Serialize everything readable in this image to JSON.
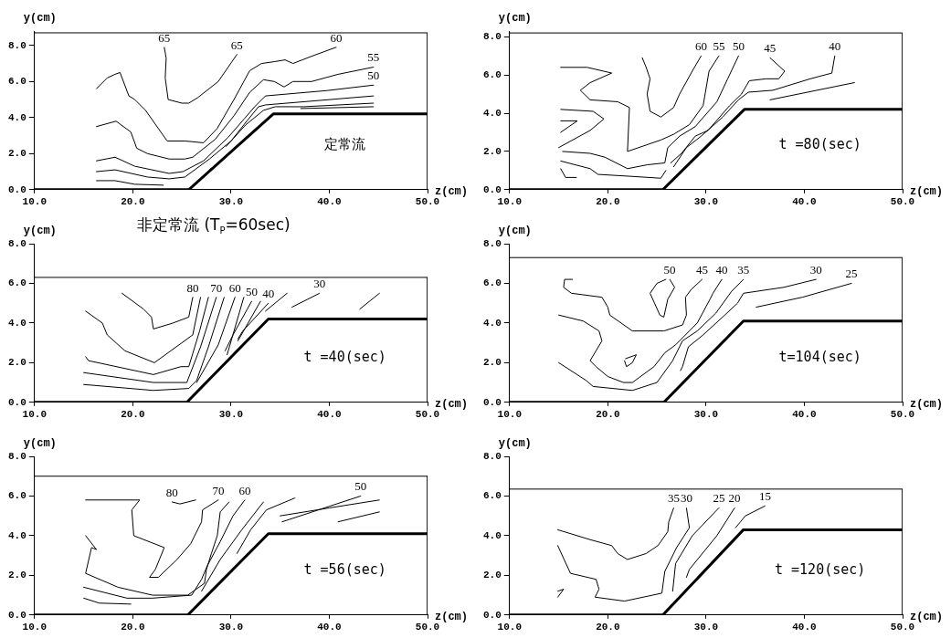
{
  "chart_data": [
    {
      "type": "line",
      "xlabel": "z(cm)",
      "ylabel": "y(cm)",
      "annotations": [
        "定常流",
        {
          "text": "65",
          "x": 23.2,
          "y": 7.9
        },
        {
          "text": "65",
          "x": 30.6,
          "y": 7.5
        }
      ],
      "xlim": [
        10,
        50
      ],
      "ylim": [
        0,
        8.8
      ],
      "marker": "none",
      "legend": false,
      "xticks": [
        {
          "value": 10,
          "label": "10.0"
        },
        {
          "value": 20,
          "label": "20.0"
        },
        {
          "value": 30,
          "label": "30.0"
        },
        {
          "value": 40,
          "label": "40.0"
        },
        {
          "value": 50,
          "label": "50.0"
        }
      ],
      "yticks": [
        {
          "value": 0,
          "label": "0.0"
        },
        {
          "value": 2,
          "label": "2.0"
        },
        {
          "value": 4,
          "label": "4.0"
        },
        {
          "value": 6,
          "label": "6.0"
        },
        {
          "value": 8,
          "label": "8.0"
        }
      ],
      "series": [
        {
          "color": "#000000",
          "x": [
            10,
            25.7,
            34.3,
            50
          ],
          "values": [
            0,
            0,
            4.2,
            4.2
          ]
        },
        {
          "color": "#000000",
          "x": [
            10,
            50,
            50
          ],
          "values": [
            8.7,
            8.7,
            0
          ]
        },
        {
          "color": "#000000",
          "x": [
            23.2,
            23.4,
            23.3,
            23.6,
            25.0,
            25.7,
            26.6,
            28.7,
            30.6
          ],
          "values": [
            7.9,
            7.3,
            6.2,
            5.0,
            4.8,
            4.8,
            5.1,
            6.0,
            7.5
          ]
        },
        {
          "name": "60",
          "color": "#000000",
          "x": [
            40.7,
            38.2,
            36.3,
            35.5,
            34.4,
            33.1,
            31.9,
            30.3,
            28.6,
            27.2,
            25.3,
            23.5,
            21.3,
            20.2,
            19.6,
            18.7,
            18.2,
            17.4,
            16.3
          ],
          "values": [
            7.9,
            7.4,
            7.0,
            7.2,
            7.1,
            7.0,
            6.6,
            5.0,
            3.4,
            2.6,
            2.7,
            2.7,
            4.4,
            5.0,
            5.2,
            6.5,
            6.4,
            6.2,
            5.6
          ]
        },
        {
          "name": "55",
          "color": "#000000",
          "x": [
            44.5,
            40.9,
            38.2,
            36.3,
            35.4,
            34.4,
            33.3,
            31.9,
            30.3,
            28.4,
            26.1,
            25.3,
            23.7,
            21.5,
            20.4,
            19.8,
            18.3,
            16.3
          ],
          "values": [
            6.8,
            6.4,
            6.0,
            6.0,
            5.7,
            6.0,
            6.1,
            5.4,
            4.1,
            2.8,
            1.8,
            1.7,
            1.7,
            2.0,
            2.3,
            3.2,
            3.8,
            3.5
          ]
        },
        {
          "name": "50",
          "color": "#000000",
          "x": [
            44.5,
            39.8,
            33.5,
            32.4,
            31.3,
            29.7,
            27.2,
            25.1,
            23.7,
            20.2,
            18.2,
            16.3
          ],
          "values": [
            5.8,
            5.5,
            5.2,
            4.6,
            3.9,
            2.9,
            1.6,
            1.0,
            0.9,
            1.3,
            1.8,
            1.6
          ]
        },
        {
          "color": "#000000",
          "x": [
            44.5,
            33.5,
            32.8,
            31.6,
            30.0,
            27.8,
            25.3,
            23.7,
            21.5,
            18.2,
            16.3
          ],
          "values": [
            5.2,
            4.7,
            4.6,
            3.8,
            2.7,
            1.7,
            0.7,
            0.6,
            0.7,
            1.1,
            1.0
          ]
        },
        {
          "color": "#000000",
          "x": [
            44.5,
            37.4,
            34.5,
            33.3,
            31.5,
            29.5
          ],
          "values": [
            4.8,
            4.6,
            4.6,
            4.4,
            3.6,
            2.4
          ]
        },
        {
          "color": "#000000",
          "x": [
            44.5,
            37.1
          ],
          "values": [
            4.6,
            4.5
          ]
        },
        {
          "color": "#000000",
          "x": [
            16.3,
            18.2,
            20.2,
            23.1
          ],
          "values": [
            0.5,
            0.5,
            0.3,
            0.25
          ]
        },
        {
          "color": "#000000",
          "x": [
            27.2,
            28.0
          ],
          "values": [
            0.7,
            1.2
          ]
        }
      ]
    },
    {
      "type": "line",
      "xlabel": "z(cm)",
      "ylabel": "y(cm)",
      "annotations": [
        "t =80(sec)"
      ],
      "xlim": [
        10,
        50
      ],
      "ylim": [
        0,
        8.3
      ],
      "marker": "none",
      "legend": false,
      "xticks": [
        {
          "value": 10,
          "label": "10.0"
        },
        {
          "value": 20,
          "label": "20.0"
        },
        {
          "value": 30,
          "label": "30.0"
        },
        {
          "value": 40,
          "label": "40.0"
        },
        {
          "value": 50,
          "label": "50.0"
        }
      ],
      "yticks": [
        {
          "value": 0,
          "label": "0.0"
        },
        {
          "value": 2,
          "label": "2.0"
        },
        {
          "value": 4,
          "label": "4.0"
        },
        {
          "value": 6,
          "label": "6.0"
        },
        {
          "value": 8,
          "label": "8.0"
        }
      ],
      "series": [
        {
          "color": "#000000",
          "x": [
            10,
            25.6,
            33.9,
            50
          ],
          "values": [
            0,
            0,
            4.2,
            4.2
          ]
        },
        {
          "color": "#000000",
          "x": [
            10,
            50,
            50
          ],
          "values": [
            8.2,
            8.2,
            0
          ]
        },
        {
          "name": "60",
          "color": "#000000",
          "x": [
            29.5,
            28.7,
            27.3,
            26.7,
            25.4,
            24.3,
            24.0,
            24.3,
            23.9,
            23.5
          ],
          "values": [
            7.0,
            6.3,
            5.0,
            4.3,
            3.8,
            4.1,
            5.0,
            5.8,
            6.4,
            6.9
          ]
        },
        {
          "name": "55",
          "color": "#000000",
          "x": [
            31.3,
            30.3,
            29.7,
            28.3,
            26.7,
            25.4,
            22.0,
            22.2,
            21.0,
            18.2,
            17.2,
            18.2,
            20.4,
            17.9,
            15.2
          ],
          "values": [
            7.0,
            6.2,
            4.4,
            3.4,
            2.9,
            2.6,
            2.0,
            4.3,
            4.6,
            4.7,
            5.2,
            5.6,
            6.1,
            6.4,
            6.4
          ]
        },
        {
          "name": "50",
          "color": "#000000",
          "x": [
            33.3,
            32.2,
            31.1,
            28.9,
            27.3,
            26.1,
            25.8,
            24.0,
            22.0,
            19.7,
            18.2,
            15.4
          ],
          "values": [
            7.0,
            5.8,
            4.6,
            3.3,
            2.8,
            2.2,
            1.4,
            1.3,
            1.1,
            1.7,
            1.9,
            2.0
          ]
        },
        {
          "name": "45",
          "color": "#000000",
          "x": [
            36.5,
            38.0,
            37.4,
            36.1,
            34.4,
            33.6,
            32.4,
            30.2,
            28.9,
            27.5,
            26.4
          ],
          "values": [
            6.9,
            6.2,
            5.8,
            5.8,
            5.7,
            5.0,
            4.4,
            3.1,
            2.8,
            1.9,
            1.4
          ]
        },
        {
          "name": "40",
          "color": "#000000",
          "x": [
            43.1,
            42.8,
            40.6,
            36.8,
            34.3,
            33.3,
            31.7,
            29.5,
            28.0,
            26.7
          ],
          "values": [
            7.0,
            6.1,
            5.8,
            5.2,
            5.1,
            4.7,
            3.8,
            2.8,
            2.2,
            1.2
          ]
        },
        {
          "color": "#000000",
          "x": [
            36.5,
            45.1
          ],
          "values": [
            4.7,
            5.6
          ]
        },
        {
          "color": "#000000",
          "x": [
            15.2,
            18.5,
            19.6,
            18.2,
            15.0
          ],
          "values": [
            4.2,
            4.1,
            3.7,
            3.1,
            2.2
          ]
        },
        {
          "color": "#000000",
          "x": [
            15.2,
            16.9,
            15.2
          ],
          "values": [
            3.6,
            3.6,
            3.0
          ]
        },
        {
          "color": "#000000",
          "x": [
            15.2,
            15.7,
            16.8
          ],
          "values": [
            1.1,
            0.64,
            0.64
          ]
        },
        {
          "color": "#000000",
          "x": [
            15.2,
            18.2,
            19.0,
            22.3,
            25.4,
            25.9
          ],
          "values": [
            1.5,
            1.1,
            0.8,
            0.7,
            0.6,
            1.0
          ]
        }
      ]
    },
    {
      "type": "line",
      "title": "非定常流 (T$_{P}$=60sec)",
      "xlabel": "z(cm)",
      "ylabel": "y(cm)",
      "annotations": [
        "t =40(sec)"
      ],
      "xlim": [
        10,
        50
      ],
      "ylim": [
        0,
        8
      ],
      "marker": "none",
      "legend": false,
      "xticks": [
        {
          "value": 10,
          "label": "10.0"
        },
        {
          "value": 20,
          "label": "20.0"
        },
        {
          "value": 30,
          "label": "30.0"
        },
        {
          "value": 40,
          "label": "40.0"
        },
        {
          "value": 50,
          "label": "50.0"
        }
      ],
      "yticks": [
        {
          "value": 0,
          "label": "0.0"
        },
        {
          "value": 2,
          "label": "2.0"
        },
        {
          "value": 4,
          "label": "4.0"
        },
        {
          "value": 6,
          "label": "6.0"
        },
        {
          "value": 8,
          "label": "8.0"
        }
      ],
      "series": [
        {
          "color": "#000000",
          "x": [
            10,
            25.5,
            33.8,
            50
          ],
          "values": [
            0,
            0,
            4.2,
            4.2
          ]
        },
        {
          "color": "#000000",
          "x": [
            10,
            50,
            50
          ],
          "values": [
            6.3,
            6.3,
            0
          ]
        },
        {
          "name": "80",
          "color": "#000000",
          "x": [
            26.1,
            25.7,
            24.1,
            22.1,
            21.9,
            21.1,
            18.9
          ],
          "values": [
            5.3,
            4.3,
            4.0,
            3.7,
            4.3,
            4.7,
            5.5
          ]
        },
        {
          "color": "#000000",
          "x": [
            26.9,
            26.1,
            22.2,
            19.2,
            17.4,
            16.9,
            15.2
          ],
          "values": [
            5.3,
            3.4,
            2.0,
            2.6,
            3.4,
            4.0,
            4.6
          ]
        },
        {
          "color": "#000000",
          "x": [
            27.7,
            26.8,
            25.7,
            24.9,
            22.1,
            15.5,
            15.2
          ],
          "values": [
            5.3,
            3.6,
            1.8,
            1.8,
            1.4,
            2.1,
            2.3
          ]
        },
        {
          "name": "70",
          "color": "#000000",
          "x": [
            28.5,
            26.9,
            25.5,
            22.1,
            15.0
          ],
          "values": [
            5.3,
            2.8,
            1.0,
            1.0,
            1.5
          ]
        },
        {
          "color": "#000000",
          "x": [
            29.3,
            27.7,
            26.5,
            25.7,
            22.1,
            15.0
          ],
          "values": [
            5.3,
            2.8,
            1.1,
            0.7,
            0.6,
            0.9
          ]
        },
        {
          "name": "60",
          "color": "#000000",
          "x": [
            30.4,
            28.7,
            26.5
          ],
          "values": [
            5.3,
            2.9,
            1.0
          ]
        },
        {
          "color": "#000000",
          "x": [
            31.3,
            29.6
          ],
          "values": [
            5.3,
            2.4
          ]
        },
        {
          "name": "50",
          "color": "#000000",
          "x": [
            32.1,
            30.2,
            29.4
          ],
          "values": [
            5.1,
            3.4,
            2.6
          ]
        },
        {
          "color": "#000000",
          "x": [
            33.0,
            30.7
          ],
          "values": [
            5.1,
            3.1
          ]
        },
        {
          "name": "40",
          "color": "#000000",
          "x": [
            33.8,
            31.2,
            30.7
          ],
          "values": [
            5.0,
            3.6,
            3.2
          ]
        },
        {
          "color": "#000000",
          "x": [
            35.7,
            33.5
          ],
          "values": [
            5.5,
            4.6
          ]
        },
        {
          "name": "30",
          "color": "#000000",
          "x": [
            39.0,
            36.2
          ],
          "values": [
            5.5,
            4.8
          ]
        },
        {
          "color": "#000000",
          "x": [
            45.1,
            43.1
          ],
          "values": [
            5.5,
            4.7
          ]
        }
      ]
    },
    {
      "type": "line",
      "xlabel": "z(cm)",
      "ylabel": "y(cm)",
      "annotations": [
        "t=104(sec)"
      ],
      "xlim": [
        10,
        50
      ],
      "ylim": [
        0,
        8
      ],
      "marker": "none",
      "legend": false,
      "xticks": [
        {
          "value": 10,
          "label": "10.0"
        },
        {
          "value": 20,
          "label": "20.0"
        },
        {
          "value": 30,
          "label": "30.0"
        },
        {
          "value": 40,
          "label": "40.0"
        },
        {
          "value": 50,
          "label": "50.0"
        }
      ],
      "yticks": [
        {
          "value": 0,
          "label": "0.0"
        },
        {
          "value": 2,
          "label": "2.0"
        },
        {
          "value": 4,
          "label": "4.0"
        },
        {
          "value": 6,
          "label": "6.0"
        },
        {
          "value": 8,
          "label": "8.0"
        }
      ],
      "series": [
        {
          "color": "#000000",
          "x": [
            10,
            25.7,
            33.8,
            50
          ],
          "values": [
            0,
            0,
            4.1,
            4.1
          ]
        },
        {
          "color": "#000000",
          "x": [
            10,
            50,
            50
          ],
          "values": [
            7.3,
            7.3,
            0
          ]
        },
        {
          "name": "50",
          "color": "#000000",
          "x": [
            26.3,
            26.8,
            26.1,
            25.7,
            25.3,
            24.3,
            25.0,
            25.9
          ],
          "values": [
            6.2,
            5.8,
            5.2,
            4.3,
            4.4,
            5.5,
            6.0,
            6.2
          ]
        },
        {
          "name": "45",
          "color": "#000000",
          "x": [
            29.6,
            28.5,
            27.9,
            28.0,
            27.6,
            25.7,
            22.5,
            20.2,
            20.0,
            19.4,
            16.3,
            15.5,
            15.6,
            16.4
          ],
          "values": [
            6.2,
            5.7,
            5.3,
            4.4,
            3.9,
            3.6,
            3.6,
            4.4,
            4.8,
            5.3,
            5.5,
            5.8,
            6.2,
            6.2
          ]
        },
        {
          "name": "40",
          "color": "#000000",
          "x": [
            31.6,
            30.7,
            30.4,
            29.1,
            26.9,
            25.8,
            24.7,
            22.5,
            21.6,
            20.0,
            18.8,
            18.2,
            19.4,
            19.1,
            17.5,
            15.0
          ],
          "values": [
            6.2,
            5.5,
            5.2,
            4.0,
            2.9,
            2.5,
            1.8,
            1.0,
            1.0,
            1.3,
            1.8,
            2.1,
            3.1,
            3.6,
            4.1,
            4.4
          ]
        },
        {
          "color": "#000000",
          "x": [
            21.8,
            22.9,
            22.5,
            21.9,
            21.7
          ],
          "values": [
            2.2,
            2.4,
            2.0,
            1.8,
            2.1
          ]
        },
        {
          "name": "35",
          "color": "#000000",
          "x": [
            33.8,
            32.6,
            31.0,
            29.1,
            27.6,
            26.6,
            25.0,
            22.5,
            18.5,
            17.8,
            15.0
          ],
          "values": [
            6.2,
            5.6,
            4.5,
            3.6,
            3.1,
            2.1,
            1.0,
            0.6,
            0.8,
            1.1,
            2.0
          ]
        },
        {
          "name": "30",
          "color": "#000000",
          "x": [
            41.2,
            37.9,
            33.8,
            33.2,
            31.9,
            29.7,
            28.2,
            27.6,
            27.4
          ],
          "values": [
            6.2,
            5.8,
            5.5,
            5.0,
            4.4,
            3.4,
            2.8,
            1.8,
            1.6
          ]
        },
        {
          "name": "25",
          "color": "#000000",
          "x": [
            44.8,
            39.8,
            35.1
          ],
          "values": [
            6.0,
            5.3,
            4.8
          ]
        }
      ]
    },
    {
      "type": "line",
      "xlabel": "z(cm)",
      "ylabel": "y(cm)",
      "annotations": [
        "t =56(sec)"
      ],
      "xlim": [
        10,
        50
      ],
      "ylim": [
        0,
        8
      ],
      "marker": "none",
      "legend": false,
      "xticks": [
        {
          "value": 10,
          "label": "10.0"
        },
        {
          "value": 20,
          "label": "20.0"
        },
        {
          "value": 30,
          "label": "30.0"
        },
        {
          "value": 40,
          "label": "40.0"
        },
        {
          "value": 50,
          "label": "50.0"
        }
      ],
      "yticks": [
        {
          "value": 0,
          "label": "0.0"
        },
        {
          "value": 2,
          "label": "2.0"
        },
        {
          "value": 4,
          "label": "4.0"
        },
        {
          "value": 6,
          "label": "6.0"
        },
        {
          "value": 8,
          "label": "8.0"
        }
      ],
      "series": [
        {
          "color": "#000000",
          "x": [
            10,
            25.6,
            33.8,
            50
          ],
          "values": [
            0,
            0,
            4.1,
            4.1
          ]
        },
        {
          "color": "#000000",
          "x": [
            10,
            50,
            50
          ],
          "values": [
            7.0,
            7.0,
            0
          ]
        },
        {
          "name": "80",
          "color": "#000000",
          "x": [
            24.0,
            24.8,
            26.4
          ],
          "values": [
            5.7,
            5.6,
            5.8
          ]
        },
        {
          "name": "70",
          "color": "#000000",
          "x": [
            28.7,
            27.1,
            27.0,
            25.9,
            24.5,
            22.6,
            21.7,
            22.3,
            23.2,
            20.1,
            19.9,
            20.7,
            15.2
          ],
          "values": [
            5.8,
            5.3,
            4.7,
            3.6,
            2.8,
            1.9,
            1.9,
            2.3,
            3.4,
            4.0,
            5.3,
            5.8,
            5.8
          ]
        },
        {
          "color": "#000000",
          "x": [
            29.8,
            28.9,
            28.6,
            28.0,
            27.5,
            27.3,
            25.6,
            22.0,
            18.5,
            15.2,
            15.8,
            16.3,
            15.2
          ],
          "values": [
            5.7,
            5.2,
            4.0,
            3.1,
            2.3,
            1.6,
            1.0,
            1.0,
            1.4,
            2.1,
            3.4,
            3.3,
            4.0
          ]
        },
        {
          "name": "60",
          "color": "#000000",
          "x": [
            31.4,
            30.2,
            28.9,
            27.6,
            27.0,
            26.0,
            22.0,
            19.4,
            15.0
          ],
          "values": [
            5.8,
            5.0,
            3.7,
            2.5,
            1.8,
            1.0,
            0.85,
            0.85,
            1.4
          ]
        },
        {
          "color": "#000000",
          "x": [
            33.3,
            31.1,
            28.9,
            27.0
          ],
          "values": [
            5.7,
            4.3,
            2.8,
            1.2
          ]
        },
        {
          "color": "#000000",
          "x": [
            36.5,
            33.6,
            32.0,
            30.6
          ],
          "values": [
            5.9,
            5.3,
            4.3,
            3.1
          ]
        },
        {
          "color": "#000000",
          "x": [
            15.0,
            16.6,
            19.8
          ],
          "values": [
            0.85,
            0.6,
            0.55
          ]
        },
        {
          "name": "50",
          "color": "#000000",
          "x": [
            43.2,
            35.2
          ],
          "values": [
            6.0,
            4.7
          ]
        },
        {
          "color": "#000000",
          "x": [
            45.1,
            40.0,
            35.0
          ],
          "values": [
            5.8,
            5.4,
            5.0
          ]
        },
        {
          "color": "#000000",
          "x": [
            45.1,
            40.9
          ],
          "values": [
            5.2,
            4.7
          ]
        }
      ]
    },
    {
      "type": "line",
      "xlabel": "z(cm)",
      "ylabel": "y(cm)",
      "annotations": [
        "t =120(sec)"
      ],
      "xlim": [
        10,
        50
      ],
      "ylim": [
        0,
        8
      ],
      "marker": "none",
      "legend": false,
      "xticks": [
        {
          "value": 10,
          "label": "10.0"
        },
        {
          "value": 20,
          "label": "20.0"
        },
        {
          "value": 30,
          "label": "30.0"
        },
        {
          "value": 40,
          "label": "40.0"
        },
        {
          "value": 50,
          "label": "50.0"
        }
      ],
      "yticks": [
        {
          "value": 0,
          "label": "0.0"
        },
        {
          "value": 2,
          "label": "2.0"
        },
        {
          "value": 4,
          "label": "4.0"
        },
        {
          "value": 6,
          "label": "6.0"
        },
        {
          "value": 8,
          "label": "8.0"
        }
      ],
      "series": [
        {
          "color": "#000000",
          "x": [
            10,
            25.6,
            33.8,
            50
          ],
          "values": [
            0,
            0,
            4.3,
            4.3
          ]
        },
        {
          "color": "#000000",
          "x": [
            10,
            50,
            50
          ],
          "values": [
            6.35,
            6.35,
            0
          ]
        },
        {
          "name": "35",
          "color": "#000000",
          "x": [
            26.7,
            26.2,
            26.1,
            25.1,
            23.9,
            22.0,
            21.0,
            20.4,
            18.2,
            14.9
          ],
          "values": [
            5.4,
            4.7,
            4.2,
            3.5,
            3.1,
            2.8,
            3.1,
            3.5,
            3.8,
            4.3
          ]
        },
        {
          "name": "30",
          "color": "#000000",
          "x": [
            28.0,
            28.3,
            27.0,
            25.8,
            25.5,
            21.7,
            18.7,
            19.1,
            18.8,
            16.2,
            14.9
          ],
          "values": [
            5.4,
            4.4,
            3.4,
            2.2,
            1.1,
            0.7,
            0.9,
            1.3,
            1.8,
            2.1,
            3.5
          ]
        },
        {
          "name": "25",
          "color": "#000000",
          "x": [
            31.3,
            28.6,
            26.9,
            26.6
          ],
          "values": [
            5.4,
            4.0,
            2.6,
            1.2
          ]
        },
        {
          "name": "20",
          "color": "#000000",
          "x": [
            32.9,
            31.1,
            28.3,
            28.0
          ],
          "values": [
            5.4,
            4.0,
            2.3,
            1.9
          ]
        },
        {
          "name": "15",
          "color": "#000000",
          "x": [
            36.0,
            34.0,
            33.5,
            33.0
          ],
          "values": [
            5.5,
            5.0,
            4.7,
            4.4
          ]
        },
        {
          "color": "#000000",
          "x": [
            14.9,
            15.5,
            14.9
          ],
          "values": [
            1.2,
            1.3,
            0.9
          ]
        }
      ]
    }
  ]
}
